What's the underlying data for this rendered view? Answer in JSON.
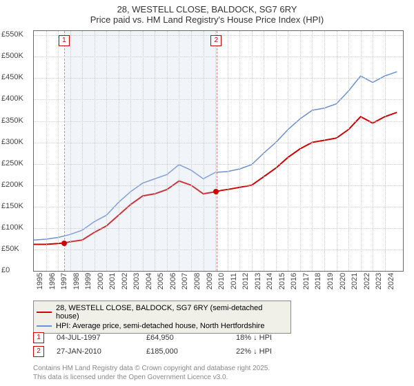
{
  "title": {
    "line1": "28, WESTELL CLOSE, BALDOCK, SG7 6RY",
    "line2": "Price paid vs. HM Land Registry's House Price Index (HPI)"
  },
  "chart": {
    "type": "line",
    "background_color": "#ffffff",
    "grid_color": "#cccccc",
    "border_color": "#666666",
    "x": {
      "min": 1995,
      "max": 2025.5,
      "step": 1,
      "labels": [
        "1995",
        "1996",
        "1997",
        "1998",
        "1999",
        "2000",
        "2001",
        "2002",
        "2003",
        "2004",
        "2005",
        "2006",
        "2007",
        "2008",
        "2009",
        "2010",
        "2011",
        "2012",
        "2013",
        "2014",
        "2015",
        "2016",
        "2017",
        "2018",
        "2019",
        "2020",
        "2021",
        "2022",
        "2023",
        "2024"
      ]
    },
    "y": {
      "min": 0,
      "max": 560000,
      "step": 50000,
      "labels": [
        "£0",
        "£50K",
        "£100K",
        "£150K",
        "£200K",
        "£250K",
        "£300K",
        "£350K",
        "£400K",
        "£450K",
        "£500K",
        "£550K"
      ]
    },
    "shaded_band": {
      "x_start": 1997.5,
      "x_end": 2010.07
    },
    "series": [
      {
        "name": "28, WESTELL CLOSE, BALDOCK, SG7 6RY (semi-detached house)",
        "color": "#cc0000",
        "width": 2,
        "data": [
          [
            1995,
            62000
          ],
          [
            1996,
            62000
          ],
          [
            1997,
            64000
          ],
          [
            1997.5,
            64950
          ],
          [
            1998,
            68000
          ],
          [
            1999,
            72000
          ],
          [
            2000,
            90000
          ],
          [
            2001,
            105000
          ],
          [
            2002,
            130000
          ],
          [
            2003,
            155000
          ],
          [
            2004,
            175000
          ],
          [
            2005,
            180000
          ],
          [
            2006,
            190000
          ],
          [
            2007,
            210000
          ],
          [
            2008,
            200000
          ],
          [
            2009,
            180000
          ],
          [
            2010.07,
            185000
          ],
          [
            2010.5,
            188000
          ],
          [
            2011,
            190000
          ],
          [
            2012,
            195000
          ],
          [
            2013,
            200000
          ],
          [
            2014,
            220000
          ],
          [
            2015,
            240000
          ],
          [
            2016,
            265000
          ],
          [
            2017,
            285000
          ],
          [
            2018,
            300000
          ],
          [
            2019,
            305000
          ],
          [
            2020,
            310000
          ],
          [
            2021,
            330000
          ],
          [
            2022,
            360000
          ],
          [
            2023,
            345000
          ],
          [
            2024,
            360000
          ],
          [
            2025,
            370000
          ]
        ]
      },
      {
        "name": "HPI: Average price, semi-detached house, North Hertfordshire",
        "color": "#6b8fd4",
        "width": 1.5,
        "data": [
          [
            1995,
            72000
          ],
          [
            1996,
            74000
          ],
          [
            1997,
            78000
          ],
          [
            1998,
            85000
          ],
          [
            1999,
            95000
          ],
          [
            2000,
            115000
          ],
          [
            2001,
            130000
          ],
          [
            2002,
            160000
          ],
          [
            2003,
            185000
          ],
          [
            2004,
            205000
          ],
          [
            2005,
            215000
          ],
          [
            2006,
            225000
          ],
          [
            2007,
            248000
          ],
          [
            2008,
            235000
          ],
          [
            2009,
            215000
          ],
          [
            2010,
            230000
          ],
          [
            2011,
            232000
          ],
          [
            2012,
            238000
          ],
          [
            2013,
            248000
          ],
          [
            2014,
            275000
          ],
          [
            2015,
            300000
          ],
          [
            2016,
            330000
          ],
          [
            2017,
            355000
          ],
          [
            2018,
            375000
          ],
          [
            2019,
            380000
          ],
          [
            2020,
            390000
          ],
          [
            2021,
            420000
          ],
          [
            2022,
            455000
          ],
          [
            2023,
            440000
          ],
          [
            2024,
            455000
          ],
          [
            2025,
            465000
          ]
        ]
      }
    ],
    "sale_markers": [
      {
        "num": "1",
        "x": 1997.5,
        "y": 64950,
        "box_y_offset": -200
      },
      {
        "num": "2",
        "x": 2010.07,
        "y": 185000,
        "box_y_offset": -200
      }
    ]
  },
  "legend": {
    "items": [
      {
        "color": "#cc0000",
        "label": "28, WESTELL CLOSE, BALDOCK, SG7 6RY (semi-detached house)"
      },
      {
        "color": "#6b8fd4",
        "label": "HPI: Average price, semi-detached house, North Hertfordshire"
      }
    ]
  },
  "sales": [
    {
      "num": "1",
      "date": "04-JUL-1997",
      "price": "£64,950",
      "pct": "18% ↓ HPI"
    },
    {
      "num": "2",
      "date": "27-JAN-2010",
      "price": "£185,000",
      "pct": "22% ↓ HPI"
    }
  ],
  "footer": {
    "line1": "Contains HM Land Registry data © Crown copyright and database right 2025.",
    "line2": "This data is licensed under the Open Government Licence v3.0."
  }
}
